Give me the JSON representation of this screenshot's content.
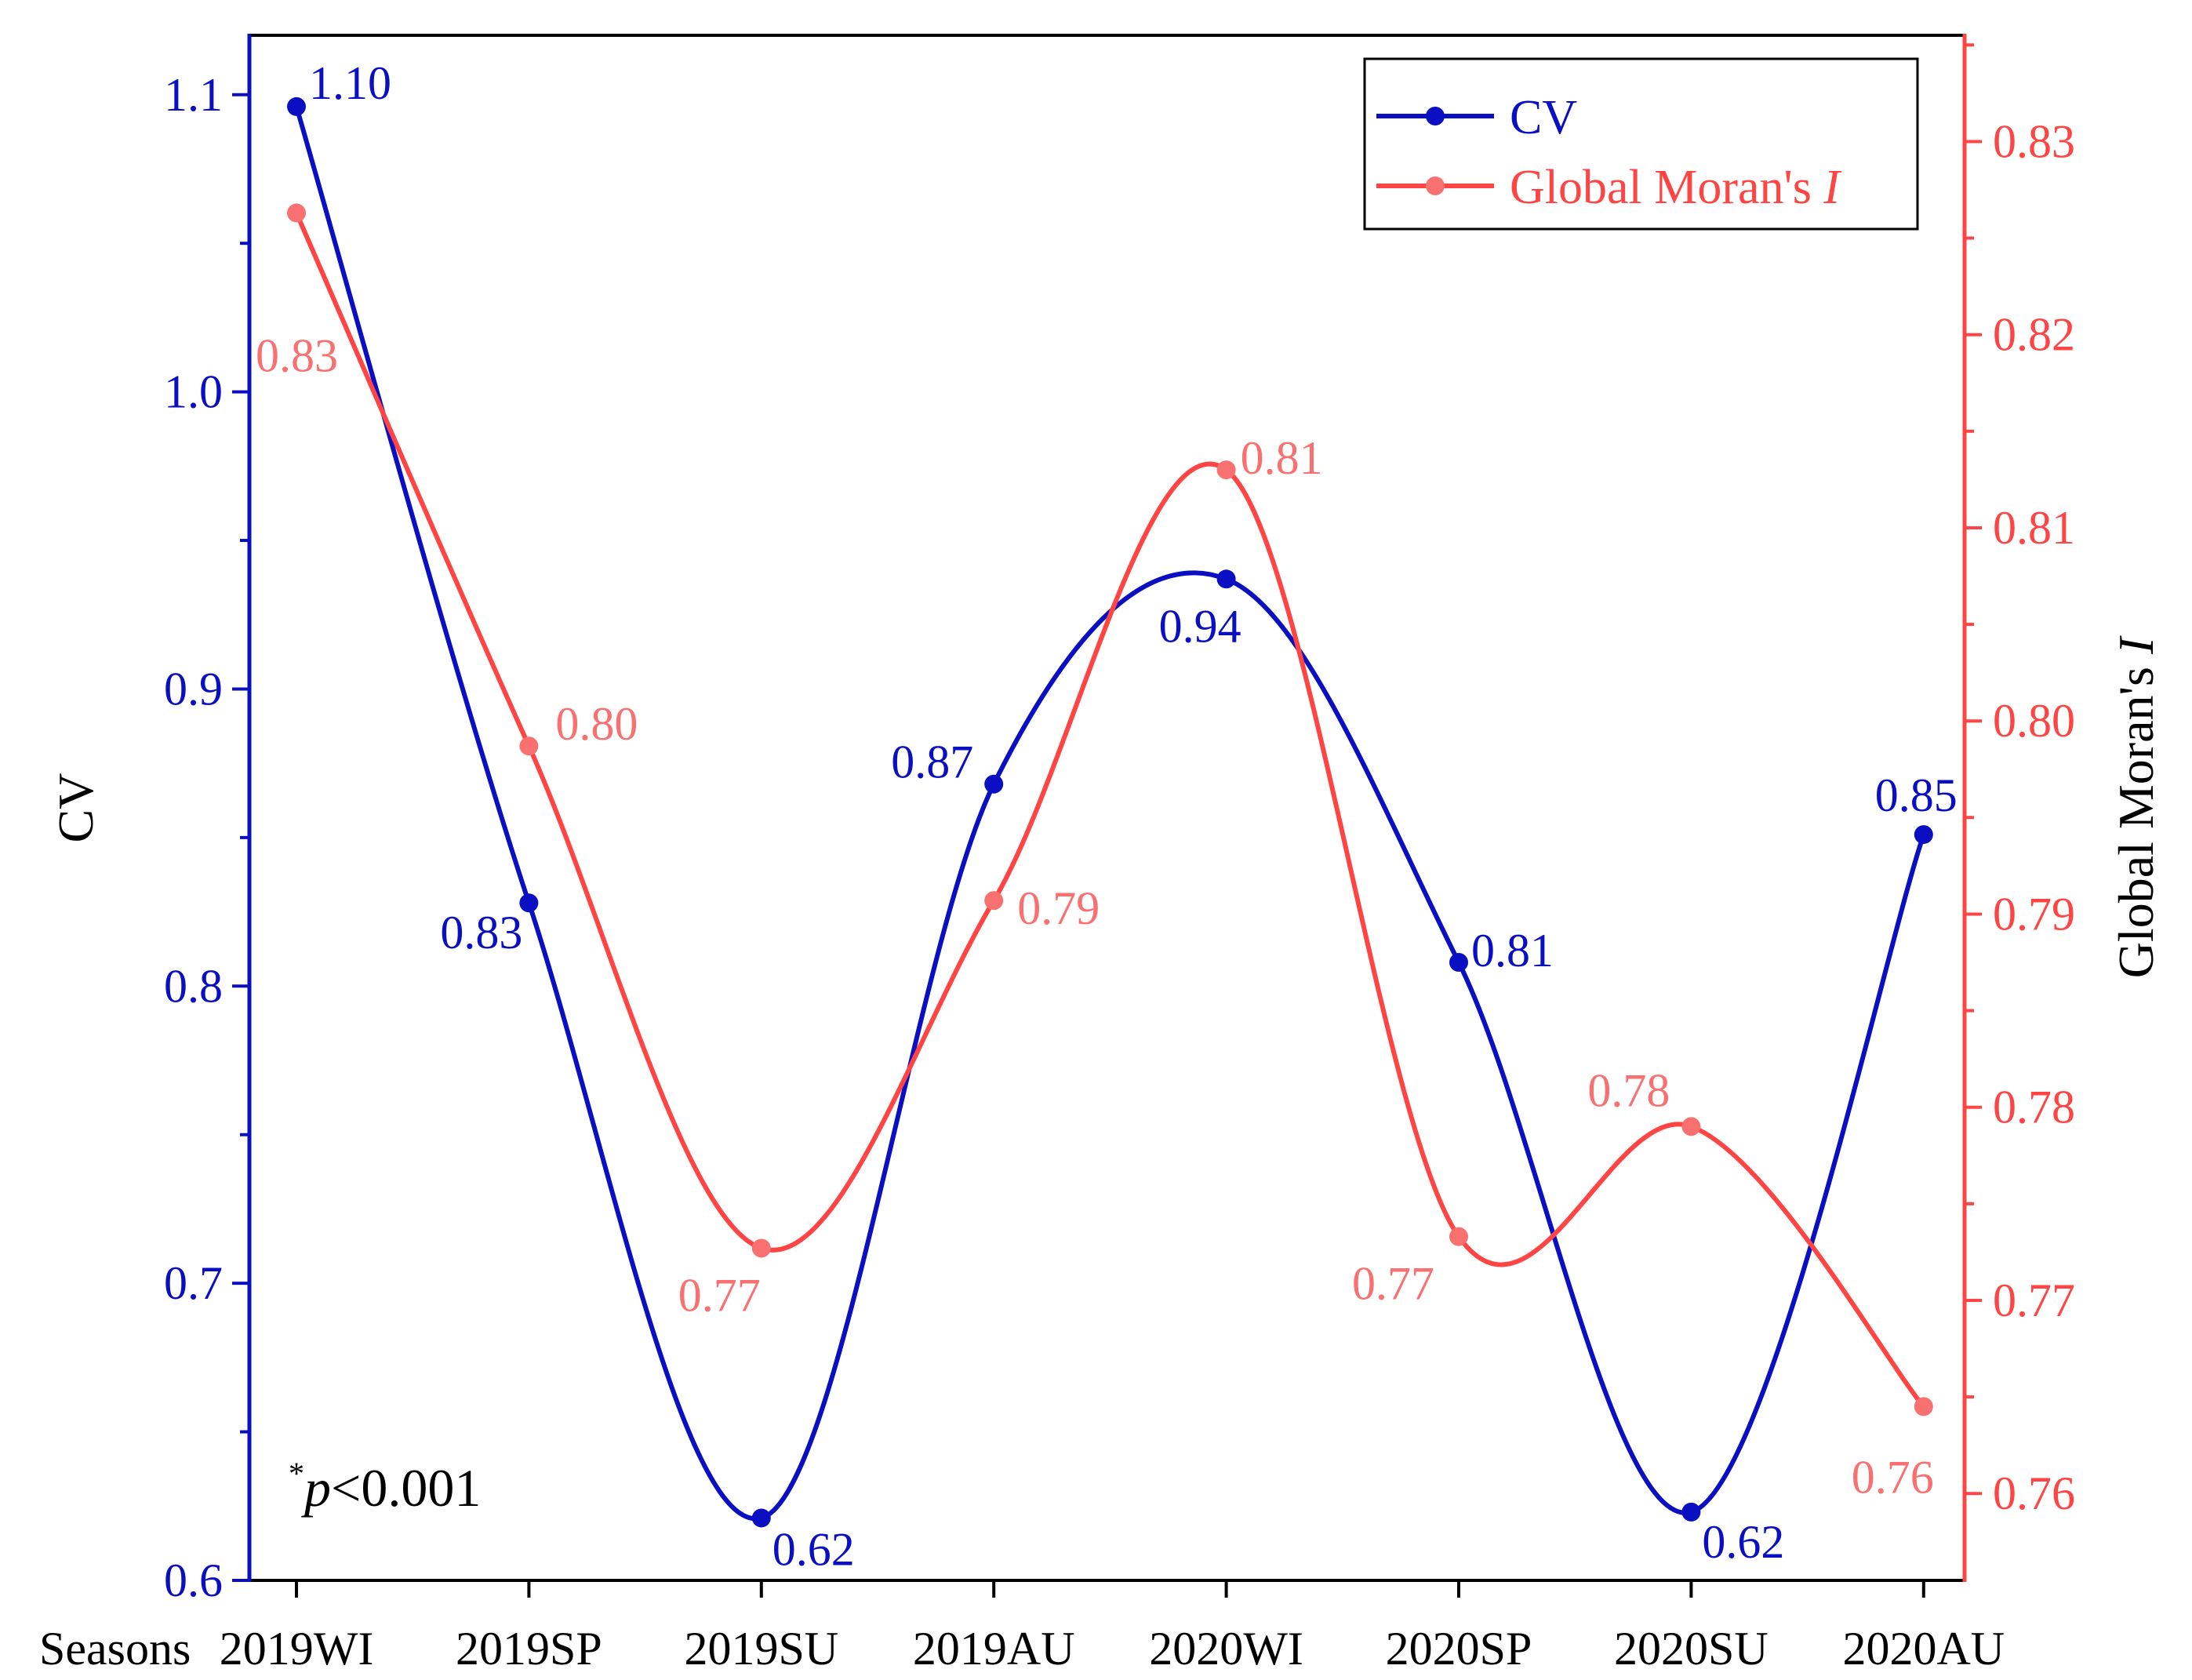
{
  "chart_data": {
    "type": "line",
    "categories": [
      "2019WI",
      "2019SP",
      "2019SU",
      "2019AU",
      "2020WI",
      "2020SP",
      "2020SU",
      "2020AU"
    ],
    "xlabel": "Seasons",
    "series": [
      {
        "name": "CV",
        "axis": "left",
        "color": "#0a10c2",
        "values": [
          1.096,
          0.828,
          0.621,
          0.868,
          0.937,
          0.808,
          0.623,
          0.851
        ],
        "labels": [
          "1.10",
          "0.83",
          "0.62",
          "0.87",
          "0.94",
          "0.81",
          "0.62",
          "0.85"
        ]
      },
      {
        "name": "Global Moran's I",
        "legend_prefix": "Global Moran's ",
        "legend_italic": "I",
        "axis": "right",
        "color": "#ff4444",
        "marker_color": "#f87070",
        "label_color": "#f87070",
        "values": [
          0.8263,
          0.7987,
          0.7727,
          0.7907,
          0.813,
          0.7733,
          0.779,
          0.7645
        ],
        "labels": [
          "0.83",
          "0.80",
          "0.77",
          "0.79",
          "0.81",
          "0.77",
          "0.78",
          "0.76"
        ]
      }
    ],
    "y_left": {
      "label": "CV",
      "color": "#0a10c2",
      "ylim": [
        0.6,
        1.12
      ],
      "ticks": [
        "0.6",
        "0.7",
        "0.8",
        "0.9",
        "1.0",
        "1.1"
      ]
    },
    "y_right": {
      "label_prefix": "Global Moran's ",
      "label_italic": "I",
      "color": "#ff4444",
      "ylim": [
        0.7555,
        0.8355
      ],
      "ticks": [
        "0.76",
        "0.77",
        "0.78",
        "0.79",
        "0.80",
        "0.81",
        "0.82",
        "0.83"
      ]
    },
    "legend": "top-right",
    "annotation": {
      "superscript": "*",
      "italic": "p",
      "text": "<0.001"
    }
  }
}
